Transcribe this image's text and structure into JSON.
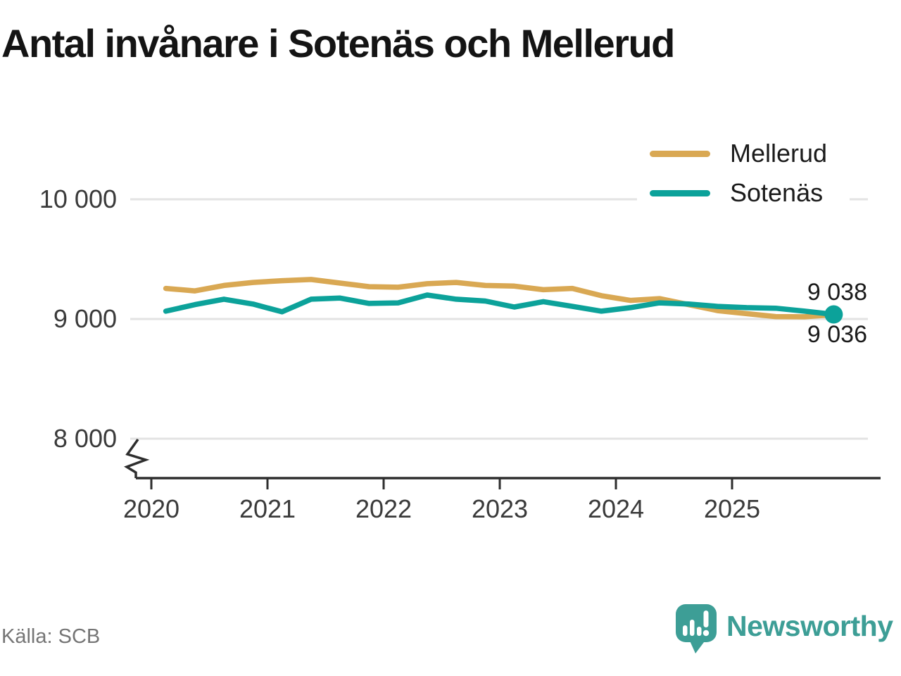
{
  "chart_data": {
    "type": "line",
    "title": "Antal invånare i Sotenäs och Mellerud",
    "source": "Källa: SCB",
    "grid": "horizontal",
    "legend_position": "top-right",
    "x_axis": {
      "tick_labels": [
        "2020",
        "2021",
        "2022",
        "2023",
        "2024",
        "2025"
      ],
      "tick_years": [
        2020,
        2021,
        2022,
        2023,
        2024,
        2025
      ],
      "start_year": 2020.125,
      "step_years": 0.25,
      "axis_break": true
    },
    "y_axis": {
      "tick_labels": [
        "10 000",
        "9 000",
        "8 000"
      ],
      "tick_values": [
        10000,
        9000,
        8000
      ],
      "unit": "invånare"
    },
    "series": [
      {
        "name": "Mellerud",
        "color": "#D9A853",
        "end_value_label": "9 036",
        "values": [
          9255,
          9235,
          9280,
          9305,
          9320,
          9330,
          9300,
          9270,
          9265,
          9295,
          9305,
          9280,
          9275,
          9245,
          9255,
          9195,
          9155,
          9170,
          9120,
          9070,
          9045,
          9020,
          9018,
          9036
        ]
      },
      {
        "name": "Sotenäs",
        "color": "#0CA29A",
        "end_dot": true,
        "end_value_label": "9 038",
        "values": [
          9065,
          9120,
          9165,
          9125,
          9060,
          9165,
          9175,
          9130,
          9135,
          9200,
          9165,
          9150,
          9100,
          9145,
          9105,
          9065,
          9095,
          9135,
          9125,
          9105,
          9095,
          9090,
          9065,
          9038
        ]
      }
    ],
    "annotations": [
      {
        "text": "9 038",
        "series": "Sotenäs"
      },
      {
        "text": "9 036",
        "series": "Mellerud"
      }
    ]
  },
  "footer": {
    "source": "Källa: SCB",
    "brand": "Newsworthy"
  }
}
